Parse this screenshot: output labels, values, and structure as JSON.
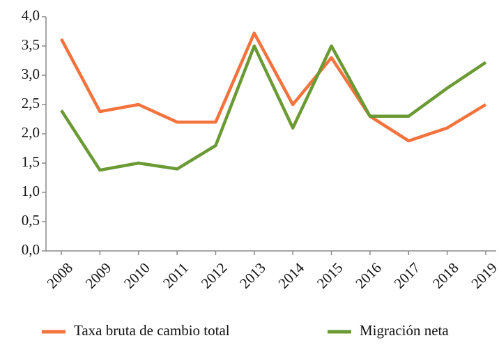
{
  "chart_data": {
    "type": "line",
    "categories": [
      "2008",
      "2009",
      "2010",
      "2011",
      "2012",
      "2013",
      "2014",
      "2015",
      "2016",
      "2017",
      "2018",
      "2019"
    ],
    "series": [
      {
        "name": "Taxa bruta de cambio total",
        "color": "#f4733d",
        "values": [
          3.62,
          2.38,
          2.5,
          2.2,
          2.2,
          3.72,
          2.5,
          3.3,
          2.3,
          1.88,
          2.1,
          2.5
        ]
      },
      {
        "name": "Migración neta",
        "color": "#6b9a35",
        "values": [
          2.4,
          1.38,
          1.5,
          1.4,
          1.8,
          3.5,
          2.1,
          3.5,
          2.3,
          2.3,
          2.78,
          3.22
        ]
      }
    ],
    "ylim": [
      0,
      4
    ],
    "yticks": [
      {
        "value": 0,
        "label": "0,0"
      },
      {
        "value": 0.5,
        "label": "0,5"
      },
      {
        "value": 1,
        "label": "1,0"
      },
      {
        "value": 1.5,
        "label": "1,5"
      },
      {
        "value": 2,
        "label": "2,0"
      },
      {
        "value": 2.5,
        "label": "2,5"
      },
      {
        "value": 3,
        "label": "3,0"
      },
      {
        "value": 3.5,
        "label": "3,5"
      },
      {
        "value": 4,
        "label": "4,0"
      }
    ],
    "grid": false
  }
}
